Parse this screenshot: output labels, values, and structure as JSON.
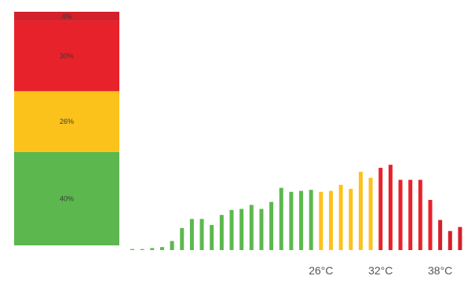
{
  "chart_data": [
    {
      "type": "stacked-bar",
      "orientation": "vertical",
      "segments": [
        {
          "label": "40%",
          "value": 40,
          "color": "#5cb84e"
        },
        {
          "label": "26%",
          "value": 26,
          "color": "#fcc21c"
        },
        {
          "label": "30%",
          "value": 30,
          "color": "#e8222a"
        },
        {
          "label": "4%",
          "value": 4,
          "color": "#d4202a"
        }
      ]
    },
    {
      "type": "bar",
      "x_tick_labels": [
        {
          "label": "26°C",
          "at_index": 19
        },
        {
          "label": "32°C",
          "at_index": 25
        },
        {
          "label": "38°C",
          "at_index": 31
        }
      ],
      "ylim": [
        0,
        1
      ],
      "grid": false,
      "legend": "none",
      "bars": [
        {
          "value": 0.01,
          "color": "#5cb84e"
        },
        {
          "value": 0.01,
          "color": "#5cb84e"
        },
        {
          "value": 0.02,
          "color": "#5cb84e"
        },
        {
          "value": 0.03,
          "color": "#5cb84e"
        },
        {
          "value": 0.09,
          "color": "#5cb84e"
        },
        {
          "value": 0.22,
          "color": "#5cb84e"
        },
        {
          "value": 0.31,
          "color": "#5cb84e"
        },
        {
          "value": 0.31,
          "color": "#5cb84e"
        },
        {
          "value": 0.25,
          "color": "#5cb84e"
        },
        {
          "value": 0.35,
          "color": "#5cb84e"
        },
        {
          "value": 0.4,
          "color": "#5cb84e"
        },
        {
          "value": 0.41,
          "color": "#5cb84e"
        },
        {
          "value": 0.45,
          "color": "#5cb84e"
        },
        {
          "value": 0.41,
          "color": "#5cb84e"
        },
        {
          "value": 0.48,
          "color": "#5cb84e"
        },
        {
          "value": 0.62,
          "color": "#5cb84e"
        },
        {
          "value": 0.58,
          "color": "#5cb84e"
        },
        {
          "value": 0.59,
          "color": "#5cb84e"
        },
        {
          "value": 0.6,
          "color": "#5cb84e"
        },
        {
          "value": 0.58,
          "color": "#fcc21c"
        },
        {
          "value": 0.59,
          "color": "#fcc21c"
        },
        {
          "value": 0.65,
          "color": "#fcc21c"
        },
        {
          "value": 0.61,
          "color": "#fcc21c"
        },
        {
          "value": 0.78,
          "color": "#fcc21c"
        },
        {
          "value": 0.72,
          "color": "#fcc21c"
        },
        {
          "value": 0.82,
          "color": "#e8222a"
        },
        {
          "value": 0.85,
          "color": "#e8222a"
        },
        {
          "value": 0.7,
          "color": "#e8222a"
        },
        {
          "value": 0.7,
          "color": "#e8222a"
        },
        {
          "value": 0.7,
          "color": "#e8222a"
        },
        {
          "value": 0.5,
          "color": "#e8222a"
        },
        {
          "value": 0.3,
          "color": "#d4202a"
        },
        {
          "value": 0.19,
          "color": "#d4202a"
        },
        {
          "value": 0.23,
          "color": "#d4202a"
        }
      ]
    }
  ]
}
